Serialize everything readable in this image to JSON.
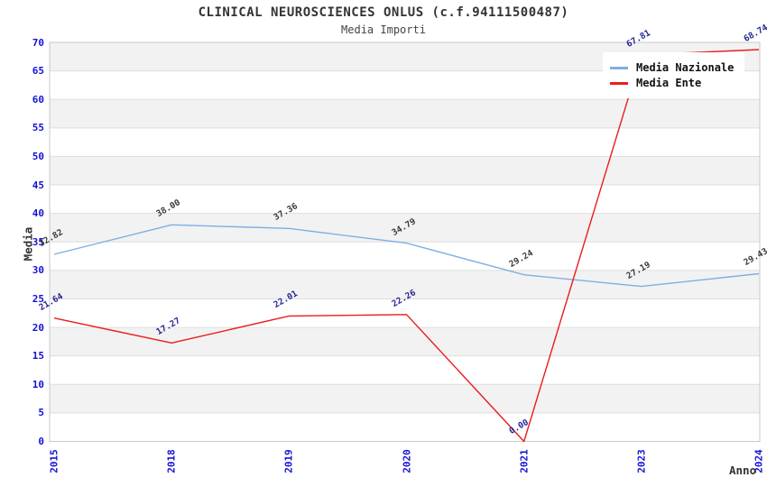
{
  "header": {
    "title": "CLINICAL NEUROSCIENCES ONLUS (c.f.94111500487)",
    "subtitle": "Media Importi"
  },
  "chart_data": {
    "type": "line",
    "title": "CLINICAL NEUROSCIENCES ONLUS (c.f.94111500487)",
    "subtitle": "Media Importi",
    "xlabel": "Anno",
    "ylabel": "Media",
    "categories": [
      "2015",
      "2018",
      "2019",
      "2020",
      "2021",
      "2023",
      "2024"
    ],
    "series": [
      {
        "name": "Media Nazionale",
        "color": "#7eafe2",
        "label_color": "#3a3a3a",
        "values": [
          32.82,
          38.0,
          37.36,
          34.79,
          29.24,
          27.19,
          29.43
        ],
        "labels": [
          "32.82",
          "38.00",
          "37.36",
          "34.79",
          "29.24",
          "27.19",
          "29.43"
        ]
      },
      {
        "name": "Media Ente",
        "color": "#ec1c1c",
        "label_color": "#252596",
        "values": [
          21.64,
          17.27,
          22.01,
          22.26,
          0.0,
          67.81,
          68.74
        ],
        "labels": [
          "21.64",
          "17.27",
          "22.01",
          "22.26",
          "0.00",
          "67.81",
          "68.74"
        ]
      }
    ],
    "ylim": [
      0,
      70
    ],
    "ytick_step": 5,
    "yticks": [
      0,
      5,
      10,
      15,
      20,
      25,
      30,
      35,
      40,
      45,
      50,
      55,
      60,
      65,
      70
    ],
    "grid": "horizontal-bands-alternating",
    "band_color": "#f2f2f2",
    "gridline_color": "#dedede",
    "border_color": "#c8c8c8",
    "tick_label_color": "#1512d6",
    "legend_position": "top-right"
  }
}
